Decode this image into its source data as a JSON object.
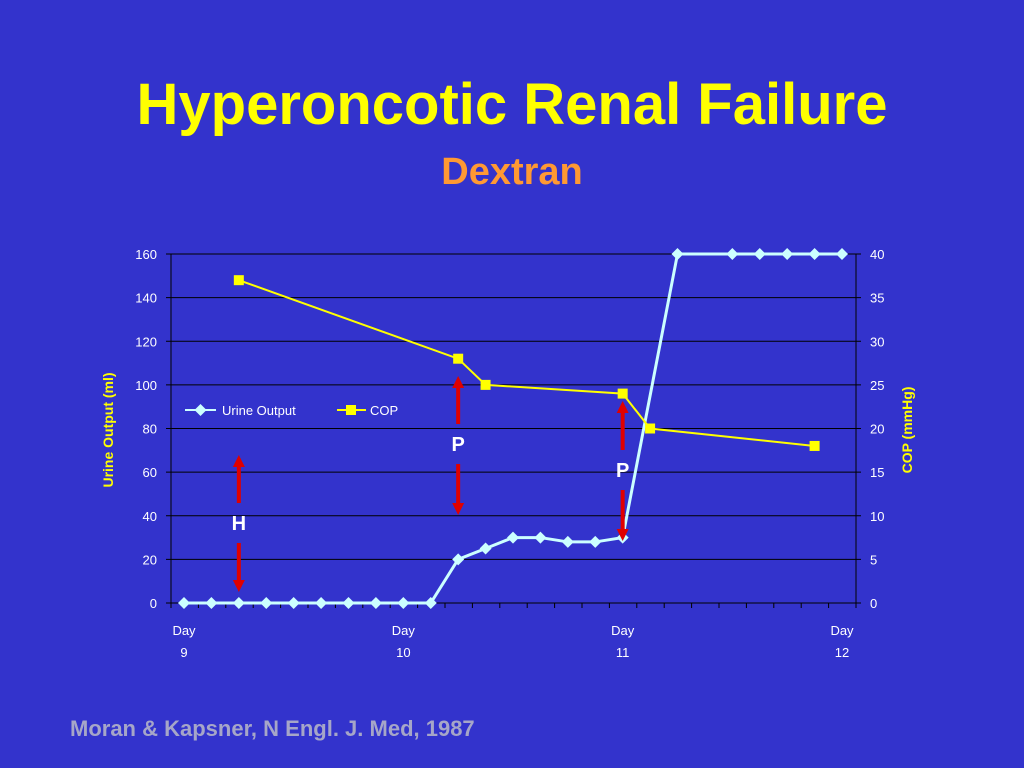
{
  "title": "Hyperoncotic Renal Failure",
  "subtitle": "Dextran",
  "source": "Moran & Kapsner, N Engl. J. Med, 1987",
  "colors": {
    "background": "#3333cc",
    "title": "#ffff00",
    "subtitle": "#ff9933",
    "urine_output": "#ccffff",
    "cop": "#ffff00",
    "arrow": "#e00000",
    "axis_text": "#ffffff",
    "axis_label": "#ffff00"
  },
  "chart_data": {
    "type": "line",
    "y_left_label": "Urine Output (ml)",
    "y_right_label": "COP (mmHg)",
    "y_left_lim": [
      0,
      160
    ],
    "y_left_ticks": [
      "0",
      "20",
      "40",
      "60",
      "80",
      "100",
      "120",
      "140",
      "160"
    ],
    "y_right_lim": [
      0,
      40
    ],
    "y_right_ticks": [
      "0",
      "5",
      "10",
      "15",
      "20",
      "25",
      "30",
      "35",
      "40"
    ],
    "x_lim": [
      9,
      12
    ],
    "x_ticks": [
      {
        "x": 9,
        "line1": "Day",
        "line2": "9"
      },
      {
        "x": 10,
        "line1": "Day",
        "line2": "10"
      },
      {
        "x": 11,
        "line1": "Day",
        "line2": "11"
      },
      {
        "x": 12,
        "line1": "Day",
        "line2": "12"
      }
    ],
    "legend": [
      "Urine Output",
      "COP"
    ],
    "legend_position": "upper-left",
    "gridlines": "horizontal",
    "series": [
      {
        "name": "Urine Output",
        "axis": "left",
        "marker": "diamond",
        "x": [
          9.0,
          9.125,
          9.25,
          9.375,
          9.5,
          9.625,
          9.75,
          9.875,
          10.0,
          10.125,
          10.25,
          10.375,
          10.5,
          10.625,
          10.75,
          10.875,
          11.0,
          11.25,
          11.5,
          11.625,
          11.75,
          11.875,
          12.0
        ],
        "values": [
          0,
          0,
          0,
          0,
          0,
          0,
          0,
          0,
          0,
          0,
          20,
          25,
          30,
          30,
          28,
          28,
          30,
          160,
          160,
          160,
          160,
          160,
          160
        ]
      },
      {
        "name": "COP",
        "axis": "right",
        "marker": "square",
        "x": [
          9.25,
          10.25,
          10.375,
          11.0,
          11.125,
          11.875
        ],
        "values": [
          37,
          28,
          25,
          24,
          20,
          18
        ]
      }
    ],
    "annotations": [
      {
        "label": "H",
        "x": 9.25
      },
      {
        "label": "P",
        "x": 10.25
      },
      {
        "label": "P",
        "x": 11.0
      }
    ]
  }
}
